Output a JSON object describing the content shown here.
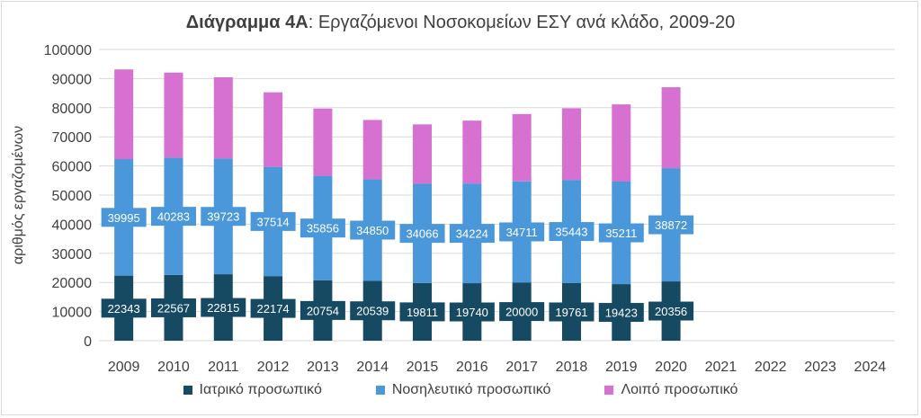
{
  "title": {
    "bold": "Διάγραμμα 4Α",
    "rest": ": Εργαζόμενοι Νοσοκομείων ΕΣΥ ανά κλάδο, 2009-20"
  },
  "colors": {
    "medical": "#164a62",
    "nursing": "#4a97d9",
    "other": "#d771d1",
    "grid": "#d9d9d9",
    "axis_text": "#404040"
  },
  "chart_data": {
    "type": "bar",
    "stacked": true,
    "title": "Διάγραμμα 4Α: Εργαζόμενοι Νοσοκομείων ΕΣΥ ανά κλάδο, 2009-20",
    "xlabel": "",
    "ylabel": "αριθμός εργαζομένων",
    "ylim": [
      0,
      100000
    ],
    "yticks": [
      0,
      10000,
      20000,
      30000,
      40000,
      50000,
      60000,
      70000,
      80000,
      90000,
      100000
    ],
    "categories": [
      "2009",
      "2010",
      "2011",
      "2012",
      "2013",
      "2014",
      "2015",
      "2016",
      "2017",
      "2018",
      "2019",
      "2020",
      "2021",
      "2022",
      "2023",
      "2024"
    ],
    "grid": true,
    "legend_position": "bottom",
    "series": [
      {
        "name": "Ιατρικό προσωπικό",
        "values": [
          22343,
          22567,
          22815,
          22174,
          20754,
          20539,
          19811,
          19740,
          20000,
          19761,
          19423,
          20356,
          null,
          null,
          null,
          null
        ]
      },
      {
        "name": "Νοσηλευτικό προσωπικό",
        "values": [
          39995,
          40283,
          39723,
          37514,
          35856,
          34850,
          34066,
          34224,
          34711,
          35443,
          35211,
          38872,
          null,
          null,
          null,
          null
        ]
      },
      {
        "name": "Λοιπό προσωπικό",
        "values": [
          30800,
          29200,
          27900,
          25600,
          23100,
          20400,
          20400,
          21600,
          23100,
          24600,
          26500,
          27800,
          null,
          null,
          null,
          null
        ]
      }
    ]
  }
}
